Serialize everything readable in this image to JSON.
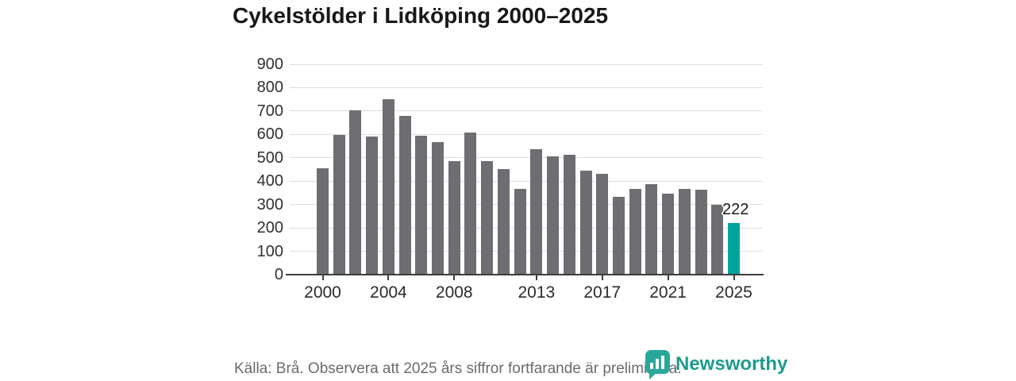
{
  "title": "Cykelstölder i Lidköping 2000–2025",
  "chart_data": {
    "type": "bar",
    "title": "Cykelstölder i Lidköping 2000–2025",
    "xlabel": "",
    "ylabel": "",
    "categories": [
      2000,
      2001,
      2002,
      2003,
      2004,
      2005,
      2006,
      2007,
      2008,
      2009,
      2010,
      2011,
      2012,
      2013,
      2014,
      2015,
      2016,
      2017,
      2018,
      2019,
      2020,
      2021,
      2022,
      2023,
      2024,
      2025
    ],
    "values": [
      455,
      598,
      704,
      591,
      751,
      680,
      594,
      568,
      487,
      607,
      487,
      453,
      367,
      538,
      505,
      514,
      445,
      432,
      333,
      368,
      387,
      345,
      368,
      364,
      298,
      222
    ],
    "ylim": [
      0,
      900
    ],
    "ytick_step": 100,
    "ytick_labels": [
      "0",
      "100",
      "200",
      "300",
      "400",
      "500",
      "600",
      "700",
      "800",
      "900"
    ],
    "xticks": [
      2000,
      2004,
      2008,
      2013,
      2017,
      2021,
      2025
    ],
    "grid": true,
    "legend_position": "none",
    "bar_color": "#6d6d72",
    "highlight_year": 2025,
    "highlight_color": "#00a49d",
    "highlight_value_label": "222"
  },
  "footer": {
    "source": "Källa: Brå. Observera att 2025 års siffror fortfarande är preliminära.",
    "brand": "Newsworthy",
    "brand_color": "#1d9a8e",
    "brand_logo_color": "#2aa79b"
  }
}
